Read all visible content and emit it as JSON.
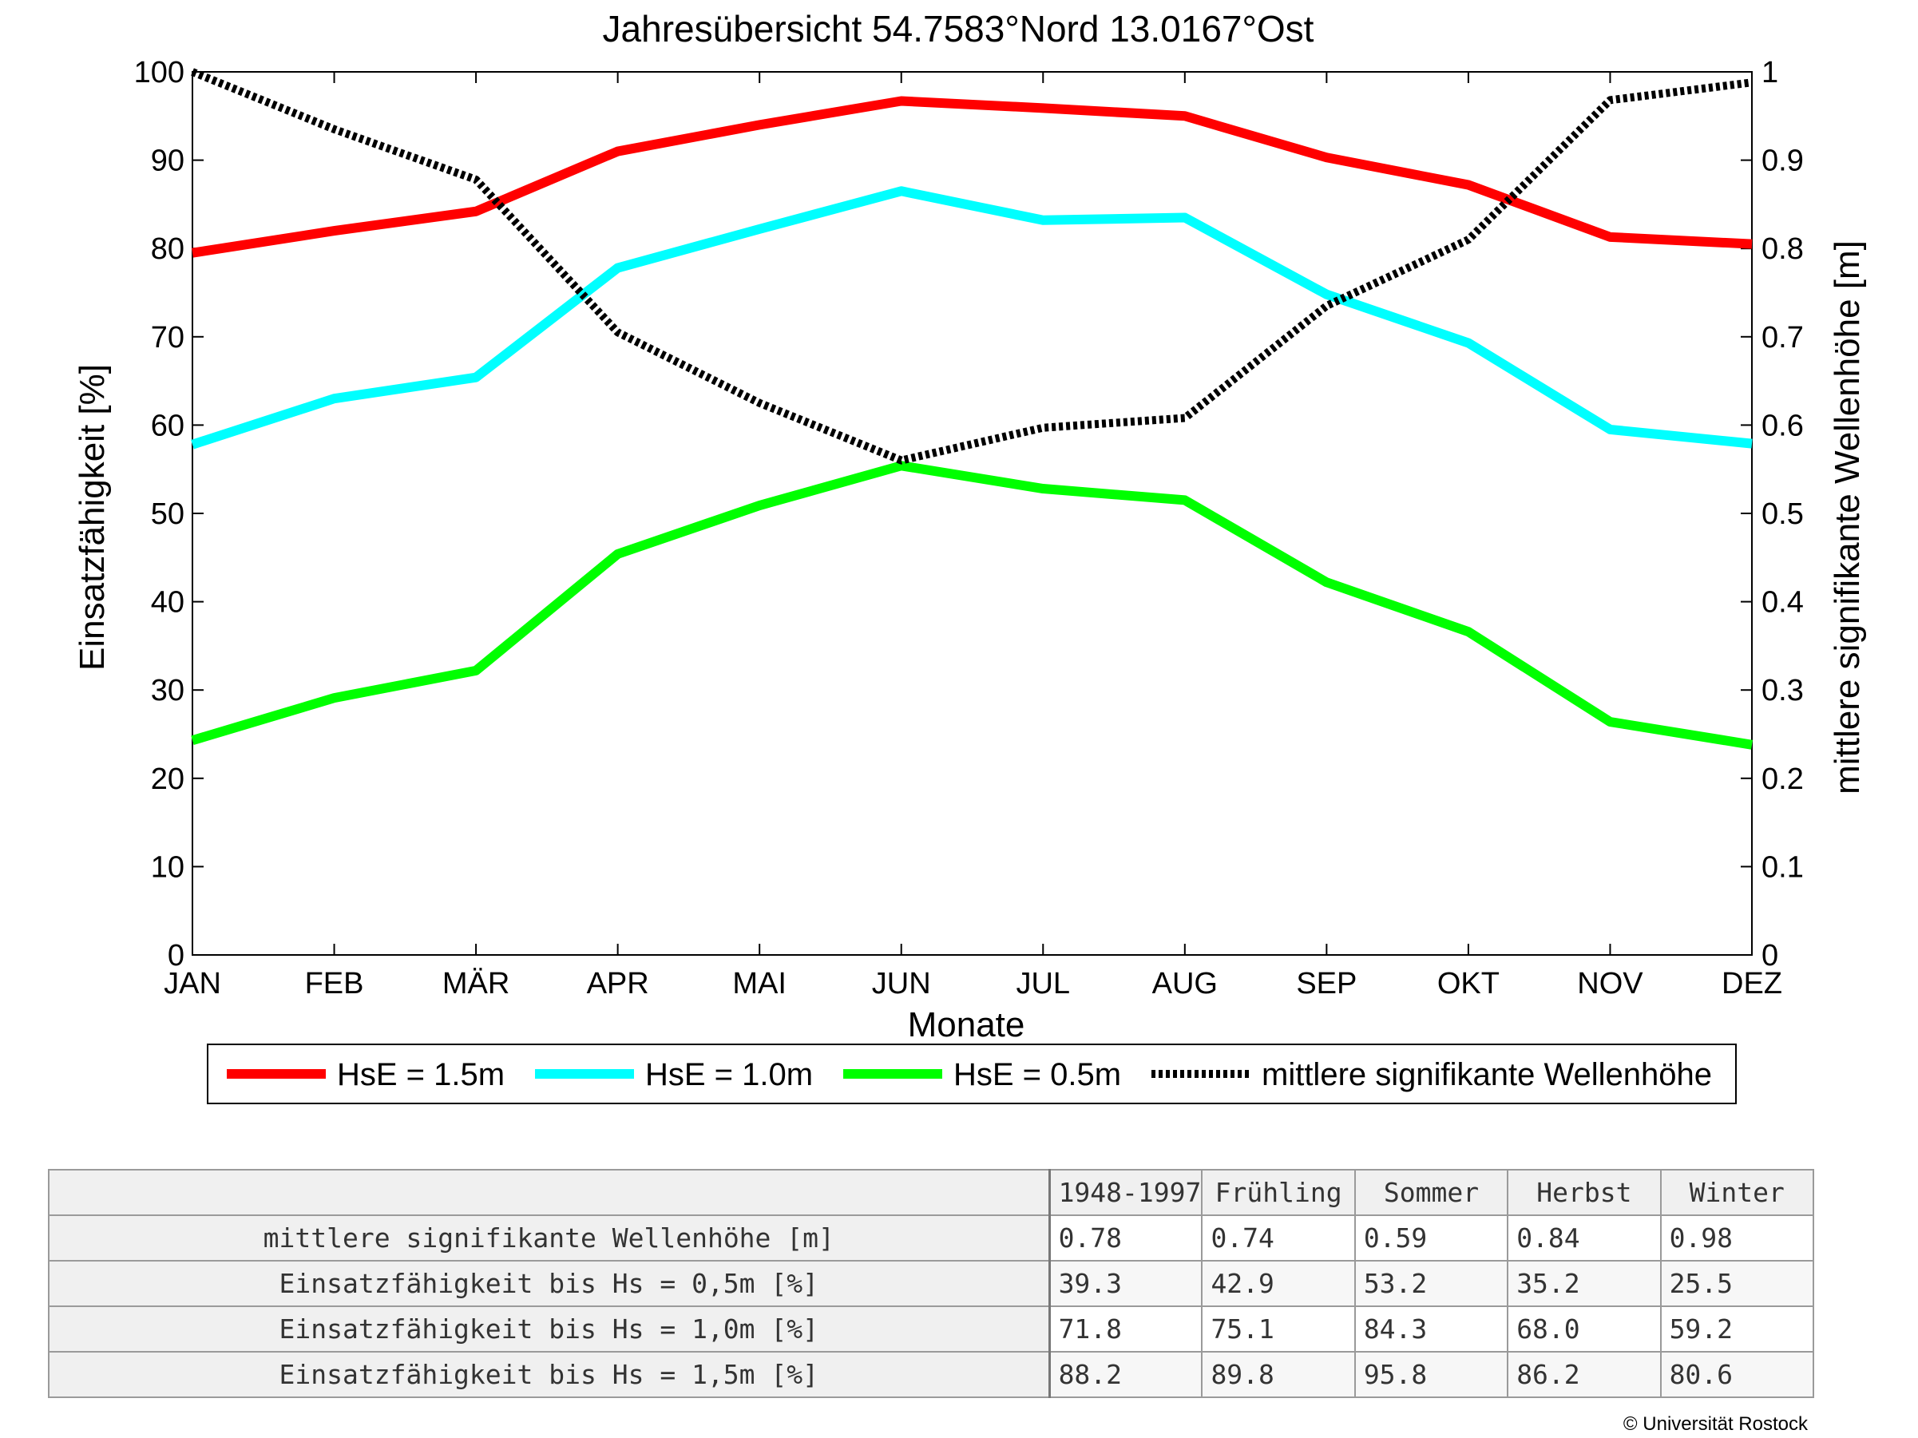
{
  "chart_data": {
    "type": "line",
    "title": "Jahresübersicht  54.7583°Nord  13.0167°Ost",
    "xlabel": "Monate",
    "ylabel": "Einsatzfähigkeit [%]",
    "y2label": "mittlere signifikante Wellenhöhe [m]",
    "categories": [
      "JAN",
      "FEB",
      "MÄR",
      "APR",
      "MAI",
      "JUN",
      "JUL",
      "AUG",
      "SEP",
      "OKT",
      "NOV",
      "DEZ"
    ],
    "ylim": [
      0,
      100
    ],
    "y2lim": [
      0,
      1
    ],
    "yticks": [
      "0",
      "10",
      "20",
      "30",
      "40",
      "50",
      "60",
      "70",
      "80",
      "90",
      "100"
    ],
    "y2ticks": [
      "0",
      "0.1",
      "0.2",
      "0.3",
      "0.4",
      "0.5",
      "0.6",
      "0.7",
      "0.8",
      "0.9",
      "1"
    ],
    "grid": false,
    "legend_position": "bottom",
    "series": [
      {
        "name": "HsE = 1.5m",
        "axis": "left",
        "color": "#ff0000",
        "style": "solid",
        "values": [
          79.5,
          82,
          84.2,
          91,
          94,
          96.7,
          95.9,
          95,
          90.3,
          87.2,
          81.3,
          80.5
        ]
      },
      {
        "name": "HsE = 1.0m",
        "axis": "left",
        "color": "#00ffff",
        "style": "solid",
        "values": [
          57.8,
          63,
          65.4,
          77.8,
          82.2,
          86.5,
          83.2,
          83.5,
          74.8,
          69.3,
          59.5,
          57.9
        ]
      },
      {
        "name": "HsE = 0.5m",
        "axis": "left",
        "color": "#00ff00",
        "style": "solid",
        "values": [
          24.3,
          29.1,
          32.2,
          45.4,
          50.9,
          55.4,
          52.8,
          51.5,
          42.2,
          36.6,
          26.4,
          23.8
        ]
      },
      {
        "name": "mittlere signifikante Wellenhöhe",
        "axis": "right",
        "color": "#000000",
        "style": "dotted",
        "values": [
          1.0,
          0.935,
          0.878,
          0.705,
          0.625,
          0.56,
          0.597,
          0.608,
          0.735,
          0.81,
          0.968,
          0.988
        ]
      }
    ]
  },
  "table": {
    "columns": [
      "1948-1997",
      "Frühling",
      "Sommer",
      "Herbst",
      "Winter"
    ],
    "rows": [
      {
        "label": "mittlere signifikante Wellenhöhe [m]",
        "values": [
          "0.78",
          "0.74",
          "0.59",
          "0.84",
          "0.98"
        ]
      },
      {
        "label": "Einsatzfähigkeit bis Hs = 0,5m [%]",
        "values": [
          "39.3",
          "42.9",
          "53.2",
          "35.2",
          "25.5"
        ]
      },
      {
        "label": "Einsatzfähigkeit bis Hs = 1,0m [%]",
        "values": [
          "71.8",
          "75.1",
          "84.3",
          "68.0",
          "59.2"
        ]
      },
      {
        "label": "Einsatzfähigkeit bis Hs = 1,5m [%]",
        "values": [
          "88.2",
          "89.8",
          "95.8",
          "86.2",
          "80.6"
        ]
      }
    ]
  },
  "copyright": "© Universität Rostock"
}
